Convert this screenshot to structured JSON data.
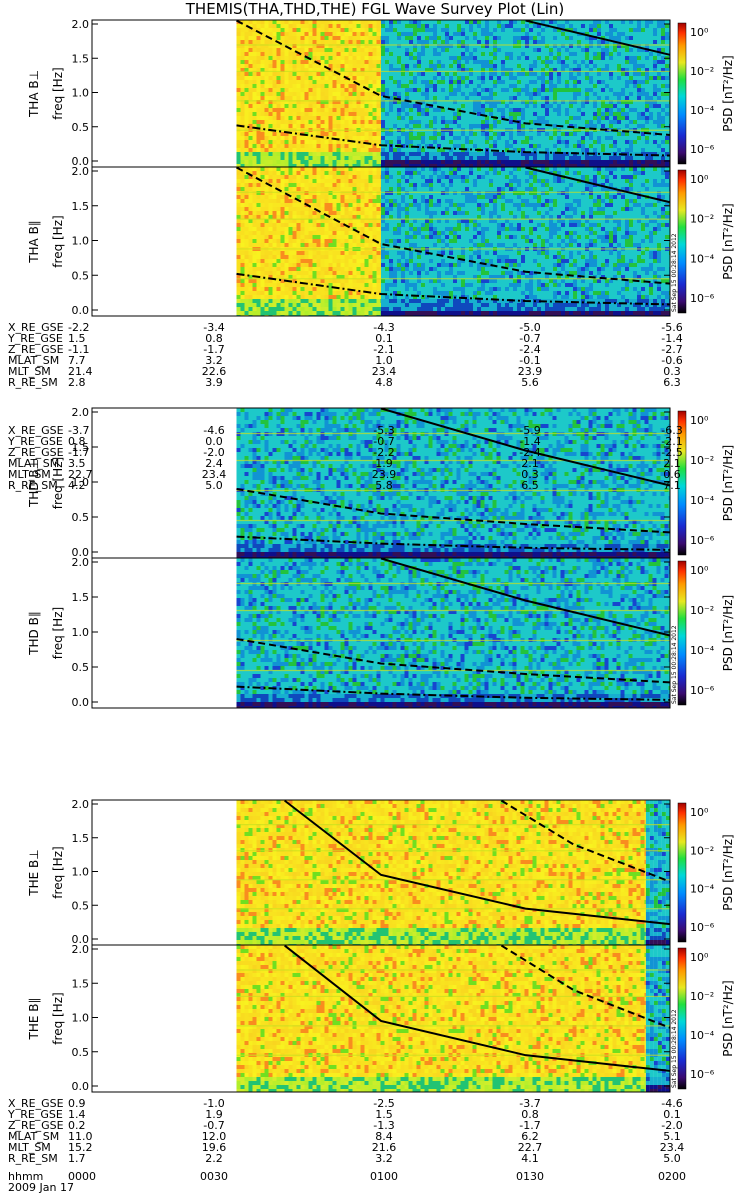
{
  "title": "THEMIS(THA,THD,THE) FGL Wave Survey Plot (Lin)",
  "date": "2009 Jan 17",
  "stamp": "Sat Sep 15 00:28:14 2012",
  "ylabel": "freq [Hz]",
  "cbar_label": "PSD [nT²/Hz]",
  "yticks": [
    "0.0",
    "0.5",
    "1.0",
    "1.5",
    "2.0"
  ],
  "cbar_ticks": [
    "10⁰",
    "10⁻²",
    "10⁻⁴",
    "10⁻⁶"
  ],
  "time_ticks": [
    "0000",
    "0030",
    "0100",
    "0130",
    "0200"
  ],
  "time_label": "hhmm",
  "chart_data": [
    {
      "type": "heatmap",
      "probe": "THA",
      "panels": [
        "THA B⊥",
        "THA B∥"
      ],
      "ylim": [
        0,
        2
      ],
      "data_start": "0030",
      "zones": [
        {
          "until": "0100",
          "level": "high"
        },
        {
          "until": "0200",
          "level": "low"
        }
      ],
      "curves": [
        {
          "style": "solid",
          "points": [
            [
              "0130",
              2.05
            ],
            [
              "0200",
              1.55
            ]
          ]
        },
        {
          "style": "dashed",
          "points": [
            [
              "0030",
              2.05
            ],
            [
              "0100",
              0.95
            ],
            [
              "0130",
              0.55
            ],
            [
              "0200",
              0.38
            ]
          ]
        },
        {
          "style": "dashdot",
          "points": [
            [
              "0030",
              0.52
            ],
            [
              "0100",
              0.23
            ],
            [
              "0130",
              0.13
            ],
            [
              "0200",
              0.08
            ]
          ]
        }
      ],
      "ephemeris": {
        "X_RE_GSE": [
          "-2.2",
          "-3.4",
          "-4.3",
          "-5.0",
          "-5.6"
        ],
        "Y_RE_GSE": [
          "1.5",
          "0.8",
          "0.1",
          "-0.7",
          "-1.4"
        ],
        "Z_RE_GSE": [
          "-1.1",
          "-1.7",
          "-2.1",
          "-2.4",
          "-2.7"
        ],
        "MLAT_SM": [
          "7.7",
          "3.2",
          "1.0",
          "-0.1",
          "-0.6"
        ],
        "MLT_SM": [
          "21.4",
          "22.6",
          "23.4",
          "23.9",
          "0.3"
        ],
        "R_RE_SM": [
          "2.8",
          "3.9",
          "4.8",
          "5.6",
          "6.3"
        ]
      }
    },
    {
      "type": "heatmap",
      "probe": "THD",
      "panels": [
        "THD B⊥",
        "THD B∥"
      ],
      "ylim": [
        0,
        2
      ],
      "data_start": "0030",
      "zones": [
        {
          "until": "0200",
          "level": "low"
        }
      ],
      "curves": [
        {
          "style": "solid",
          "points": [
            [
              "0100",
              2.05
            ],
            [
              "0130",
              1.45
            ],
            [
              "0200",
              0.95
            ]
          ]
        },
        {
          "style": "dashed",
          "points": [
            [
              "0030",
              0.9
            ],
            [
              "0100",
              0.55
            ],
            [
              "0130",
              0.4
            ],
            [
              "0200",
              0.28
            ]
          ]
        },
        {
          "style": "dashdot",
          "points": [
            [
              "0030",
              0.22
            ],
            [
              "0100",
              0.12
            ],
            [
              "0130",
              0.06
            ],
            [
              "0200",
              0.03
            ]
          ]
        }
      ],
      "ephemeris": {
        "X_RE_GSE": [
          "-3.7",
          "-4.6",
          "-5.3",
          "-5.9",
          "-6.3"
        ],
        "Y_RE_GSE": [
          "0.8",
          "0.0",
          "-0.7",
          "-1.4",
          "-2.1"
        ],
        "Z_RE_GSE": [
          "-1.7",
          "-2.0",
          "-2.2",
          "-2.4",
          "-2.5"
        ],
        "MLAT_SM": [
          "3.5",
          "2.4",
          "1.9",
          "2.1",
          "2.1"
        ],
        "MLT_SM": [
          "22.7",
          "23.4",
          "23.9",
          "0.3",
          "0.6"
        ],
        "R_RE_SM": [
          "4.2",
          "5.0",
          "5.8",
          "6.5",
          "7.1"
        ]
      }
    },
    {
      "type": "heatmap",
      "probe": "THE",
      "panels": [
        "THE B⊥",
        "THE B∥"
      ],
      "ylim": [
        0,
        2
      ],
      "data_start": "0030",
      "zones": [
        {
          "until": "0155",
          "level": "high"
        },
        {
          "until": "0200",
          "level": "low"
        }
      ],
      "curves": [
        {
          "style": "solid",
          "points": [
            [
              "0040",
              2.05
            ],
            [
              "0100",
              0.95
            ],
            [
              "0130",
              0.45
            ],
            [
              "0200",
              0.22
            ]
          ]
        },
        {
          "style": "dashed",
          "points": [
            [
              "0125",
              2.05
            ],
            [
              "0140",
              1.4
            ],
            [
              "0200",
              0.85
            ]
          ]
        }
      ],
      "ephemeris": {
        "X_RE_GSE": [
          "0.9",
          "-1.0",
          "-2.5",
          "-3.7",
          "-4.6"
        ],
        "Y_RE_GSE": [
          "1.4",
          "1.9",
          "1.5",
          "0.8",
          "0.1"
        ],
        "Z_RE_GSE": [
          "0.2",
          "-0.7",
          "-1.3",
          "-1.7",
          "-2.0"
        ],
        "MLAT_SM": [
          "11.0",
          "12.0",
          "8.4",
          "6.2",
          "5.1"
        ],
        "MLT_SM": [
          "15.2",
          "19.6",
          "21.6",
          "22.7",
          "23.4"
        ],
        "R_RE_SM": [
          "1.7",
          "2.2",
          "3.2",
          "4.1",
          "5.0"
        ]
      }
    }
  ]
}
